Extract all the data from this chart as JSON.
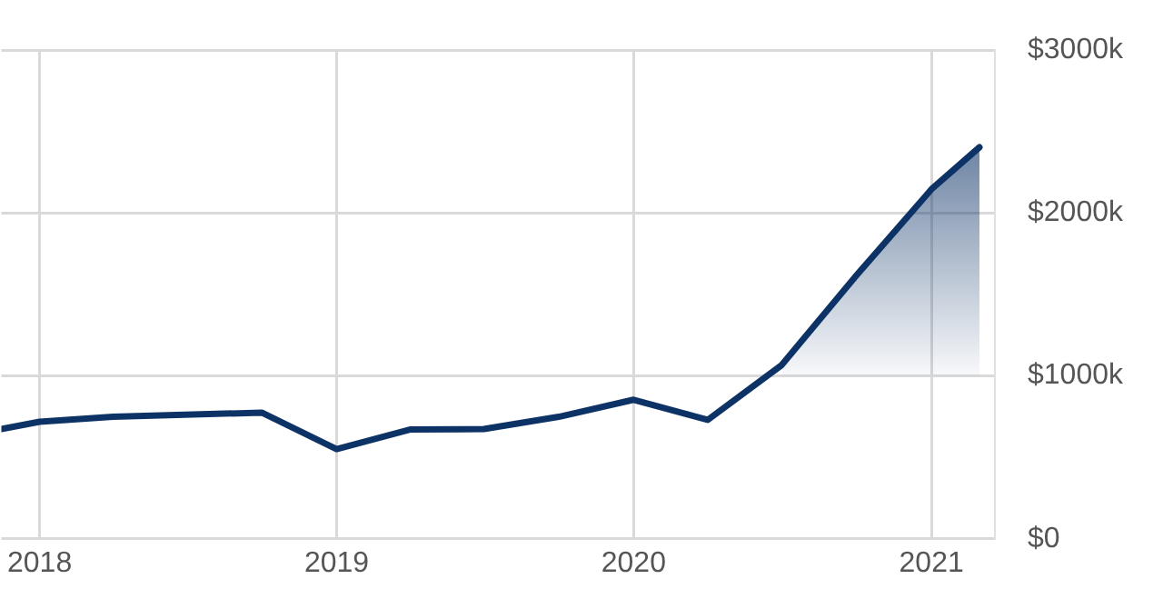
{
  "chart_data": {
    "type": "line",
    "x": [
      "2017-11-15",
      "2018-01",
      "2018-04",
      "2018-10",
      "2019-01",
      "2019-04",
      "2019-07",
      "2019-10",
      "2020-01",
      "2020-04",
      "2020-07",
      "2020-10",
      "2021-01",
      "2021-03"
    ],
    "series": [
      {
        "color": "#0d3366",
        "values": [
          674,
          719,
          749,
          775,
          551,
          671,
          674,
          749,
          854,
          730,
          1067,
          1618,
          2146,
          2404
        ],
        "lower": [
          null,
          null,
          null,
          null,
          null,
          null,
          null,
          null,
          null,
          null,
          1000,
          1000,
          1000,
          1000
        ],
        "upper": [
          null,
          null,
          null,
          null,
          null,
          null,
          null,
          null,
          null,
          null,
          1067,
          1618,
          2146,
          2404
        ]
      }
    ],
    "xlim": [
      "2017-11-15",
      "2021-03-20"
    ],
    "xticks": [
      {
        "value": "2018-01-01",
        "label": "2018"
      },
      {
        "value": "2019-01-01",
        "label": "2019"
      },
      {
        "value": "2020-01-01",
        "label": "2020"
      },
      {
        "value": "2021-01-01",
        "label": "2021"
      }
    ],
    "ylim": [
      0,
      3000
    ],
    "yticks": [
      {
        "value": 0,
        "label": "$0"
      },
      {
        "value": 1000,
        "label": "$1000k"
      },
      {
        "value": 2000,
        "label": "$2000k"
      },
      {
        "value": 3000,
        "label": "$3000k"
      }
    ],
    "grid": true,
    "legend": false,
    "marker": "none",
    "line_style": "solid"
  }
}
